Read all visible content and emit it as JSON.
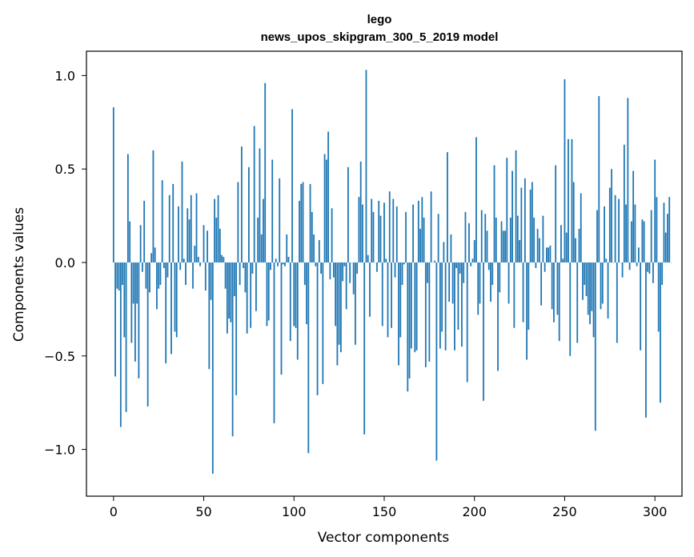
{
  "chart_data": {
    "type": "bar",
    "title": "lego",
    "subtitle": "news_upos_skipgram_300_5_2019 model",
    "xlabel": "Vector components",
    "ylabel": "Components values",
    "xlim": [
      -15,
      315
    ],
    "ylim": [
      -1.25,
      1.13
    ],
    "x_ticks": [
      0,
      50,
      100,
      150,
      200,
      250,
      300
    ],
    "y_ticks": [
      -1.0,
      -0.5,
      0.0,
      0.5,
      1.0
    ],
    "x_tick_labels": [
      "0",
      "50",
      "100",
      "150",
      "200",
      "250",
      "300"
    ],
    "y_tick_labels": [
      "−1.0",
      "−0.5",
      "0.0",
      "0.5",
      "1.0"
    ],
    "grid": false,
    "bar_color": "#1f77b4",
    "values": [
      0.83,
      -0.61,
      -0.14,
      -0.15,
      -0.88,
      -0.12,
      -0.4,
      -0.8,
      0.58,
      0.22,
      -0.43,
      -0.22,
      -0.53,
      -0.22,
      -0.62,
      0.2,
      -0.05,
      0.33,
      -0.14,
      -0.77,
      -0.16,
      0.05,
      0.6,
      0.08,
      -0.25,
      -0.14,
      -0.12,
      0.44,
      -0.03,
      -0.54,
      -0.08,
      0.36,
      -0.49,
      0.42,
      -0.37,
      -0.4,
      0.3,
      -0.04,
      0.54,
      0.02,
      -0.12,
      0.29,
      0.23,
      0.36,
      -0.14,
      0.09,
      0.37,
      0.03,
      -0.02,
      0.0,
      0.2,
      -0.15,
      0.17,
      -0.57,
      -0.2,
      -1.13,
      0.34,
      0.24,
      0.36,
      0.18,
      0.04,
      0.03,
      -0.14,
      -0.38,
      -0.3,
      -0.32,
      -0.93,
      -0.18,
      -0.71,
      0.43,
      -0.12,
      0.62,
      -0.03,
      -0.16,
      -0.38,
      0.51,
      -0.35,
      -0.06,
      0.73,
      -0.26,
      0.24,
      0.61,
      0.15,
      0.34,
      0.96,
      -0.34,
      -0.31,
      -0.04,
      0.55,
      -0.86,
      0.02,
      -0.02,
      0.45,
      -0.6,
      -0.01,
      -0.02,
      0.15,
      0.03,
      -0.42,
      0.82,
      -0.34,
      -0.35,
      -0.52,
      0.33,
      0.42,
      0.43,
      -0.12,
      -0.33,
      -1.02,
      0.42,
      0.27,
      0.15,
      -0.02,
      -0.71,
      0.12,
      -0.06,
      -0.65,
      0.58,
      0.55,
      0.7,
      -0.09,
      0.29,
      -0.08,
      -0.34,
      -0.55,
      -0.44,
      -0.48,
      -0.1,
      -0.02,
      -0.25,
      0.51,
      -0.11,
      0.0,
      -0.17,
      -0.44,
      -0.06,
      0.35,
      0.54,
      0.31,
      -0.92,
      1.03,
      0.04,
      -0.29,
      0.34,
      0.27,
      0.0,
      -0.05,
      0.33,
      0.25,
      -0.34,
      0.32,
      0.02,
      -0.4,
      0.38,
      -0.35,
      0.34,
      -0.08,
      0.3,
      -0.55,
      -0.4,
      -0.12,
      -0.01,
      0.27,
      -0.69,
      -0.62,
      -0.46,
      0.31,
      -0.48,
      -0.47,
      0.33,
      0.18,
      0.35,
      0.24,
      -0.56,
      -0.11,
      -0.53,
      0.38,
      0.0,
      0.01,
      -1.06,
      0.26,
      -0.46,
      -0.37,
      0.11,
      -0.47,
      0.59,
      -0.21,
      0.15,
      -0.22,
      -0.47,
      -0.03,
      -0.36,
      -0.06,
      -0.45,
      -0.11,
      0.27,
      -0.64,
      0.21,
      -0.02,
      0.02,
      0.12,
      0.67,
      -0.28,
      -0.22,
      0.28,
      -0.74,
      0.26,
      0.17,
      -0.04,
      -0.21,
      -0.12,
      0.52,
      0.24,
      -0.58,
      -0.16,
      0.22,
      0.17,
      0.17,
      0.56,
      -0.22,
      0.24,
      0.49,
      -0.35,
      0.6,
      0.25,
      0.12,
      0.4,
      -0.32,
      0.45,
      -0.52,
      -0.36,
      0.39,
      0.43,
      0.24,
      -0.03,
      0.18,
      0.13,
      -0.23,
      0.25,
      -0.05,
      0.08,
      0.08,
      0.09,
      -0.25,
      -0.32,
      0.52,
      -0.28,
      -0.42,
      0.2,
      0.02,
      0.98,
      0.16,
      0.66,
      -0.5,
      0.66,
      0.43,
      0.13,
      -0.43,
      0.18,
      0.37,
      -0.2,
      -0.12,
      -0.18,
      -0.28,
      -0.33,
      -0.26,
      -0.4,
      -0.9,
      0.28,
      0.89,
      -0.25,
      -0.22,
      0.3,
      0.02,
      -0.3,
      0.4,
      0.5,
      0.0,
      0.36,
      -0.43,
      0.34,
      0.0,
      -0.08,
      0.63,
      0.31,
      0.88,
      -0.04,
      0.22,
      0.49,
      0.31,
      -0.02,
      0.08,
      -0.47,
      0.23,
      0.22,
      -0.83,
      -0.05,
      -0.06,
      0.28,
      -0.11,
      0.55,
      0.35,
      -0.37,
      -0.75,
      -0.12,
      0.32,
      0.16,
      0.26,
      0.35,
      0.0
    ]
  }
}
